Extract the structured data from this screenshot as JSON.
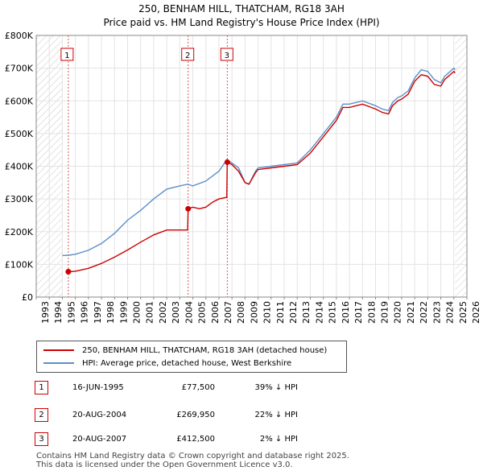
{
  "title_line1": "250, BENHAM HILL, THATCHAM, RG18 3AH",
  "title_line2": "Price paid vs. HM Land Registry's House Price Index (HPI)",
  "legend": {
    "property_label": "250, BENHAM HILL, THATCHAM, RG18 3AH (detached house)",
    "hpi_label": "HPI: Average price, detached house, West Berkshire"
  },
  "colors": {
    "property": "#cc0000",
    "hpi": "#5b8fc9",
    "shade": "#dfe8f5"
  },
  "sales": [
    {
      "num": "1",
      "date": "16-JUN-1995",
      "price": "£77,500",
      "hpi_diff": "39% ↓ HPI"
    },
    {
      "num": "2",
      "date": "20-AUG-2004",
      "price": "£269,950",
      "hpi_diff": "22% ↓ HPI"
    },
    {
      "num": "3",
      "date": "20-AUG-2007",
      "price": "£412,500",
      "hpi_diff": "2% ↓ HPI"
    }
  ],
  "footer_line1": "Contains HM Land Registry data © Crown copyright and database right 2025.",
  "footer_line2": "This data is licensed under the Open Government Licence v3.0.",
  "chart_data": {
    "type": "line",
    "xlim": [
      1993,
      2026
    ],
    "ylim": [
      0,
      800000
    ],
    "x_ticks": [
      1993,
      1994,
      1995,
      1996,
      1997,
      1998,
      1999,
      2000,
      2001,
      2002,
      2003,
      2004,
      2005,
      2006,
      2007,
      2008,
      2009,
      2010,
      2011,
      2012,
      2013,
      2014,
      2015,
      2016,
      2017,
      2018,
      2019,
      2020,
      2021,
      2022,
      2023,
      2024,
      2025,
      2026
    ],
    "y_ticks": [
      {
        "value": 0,
        "label": "£0"
      },
      {
        "value": 100000,
        "label": "£100K"
      },
      {
        "value": 200000,
        "label": "£200K"
      },
      {
        "value": 300000,
        "label": "£300K"
      },
      {
        "value": 400000,
        "label": "£400K"
      },
      {
        "value": 500000,
        "label": "£500K"
      },
      {
        "value": 600000,
        "label": "£600K"
      },
      {
        "value": 700000,
        "label": "£700K"
      },
      {
        "value": 800000,
        "label": "£800K"
      }
    ],
    "hatched_ranges": [
      [
        1993,
        1995.0
      ],
      [
        2025.1,
        2026
      ]
    ],
    "sale_markers": [
      {
        "label": "1",
        "x": 1995.46,
        "y": 77500
      },
      {
        "label": "2",
        "x": 2004.64,
        "y": 269950
      },
      {
        "label": "3",
        "x": 2007.64,
        "y": 412500
      }
    ],
    "series": [
      {
        "name": "250, BENHAM HILL, THATCHAM, RG18 3AH (detached house)",
        "x": [
          1995.46,
          1996,
          1997,
          1998,
          1999,
          2000,
          2001,
          2002,
          2003,
          2004,
          2004.6,
          2004.64,
          2005,
          2005.5,
          2006,
          2006.5,
          2007,
          2007.6,
          2007.64,
          2008,
          2008.5,
          2009,
          2009.3,
          2009.8,
          2010,
          2011,
          2012,
          2013,
          2014,
          2015,
          2016,
          2016.5,
          2017,
          2018,
          2019,
          2019.5,
          2020,
          2020.3,
          2020.7,
          2021,
          2021.5,
          2022,
          2022.5,
          2023,
          2023.5,
          2024,
          2024.3,
          2025,
          2025.1
        ],
        "y": [
          77500,
          79000,
          88000,
          103000,
          122000,
          144000,
          168000,
          190000,
          205000,
          205000,
          205000,
          269950,
          275000,
          270000,
          275000,
          290000,
          300000,
          305000,
          412500,
          405000,
          385000,
          350000,
          345000,
          380000,
          390000,
          395000,
          400000,
          405000,
          440000,
          490000,
          540000,
          580000,
          580000,
          590000,
          575000,
          565000,
          560000,
          585000,
          600000,
          605000,
          620000,
          660000,
          680000,
          675000,
          650000,
          645000,
          665000,
          690000,
          685000
        ]
      },
      {
        "name": "HPI: Average price, detached house, West Berkshire",
        "x": [
          1995.0,
          1995.5,
          1996,
          1997,
          1998,
          1999,
          2000,
          2001,
          2002,
          2003,
          2004,
          2004.6,
          2005,
          2006,
          2007,
          2007.6,
          2008,
          2008.5,
          2009,
          2009.3,
          2009.8,
          2010,
          2011,
          2012,
          2013,
          2014,
          2015,
          2016,
          2016.5,
          2017,
          2018,
          2019,
          2019.5,
          2020,
          2020.3,
          2020.7,
          2021,
          2021.5,
          2022,
          2022.5,
          2023,
          2023.5,
          2024,
          2024.3,
          2025,
          2025.1
        ],
        "y": [
          127000,
          128000,
          131000,
          143000,
          164000,
          195000,
          235000,
          265000,
          300000,
          330000,
          340000,
          345000,
          340000,
          355000,
          385000,
          420000,
          410000,
          395000,
          350000,
          345000,
          385000,
          395000,
          400000,
          405000,
          410000,
          450000,
          500000,
          550000,
          590000,
          590000,
          600000,
          585000,
          575000,
          570000,
          595000,
          610000,
          615000,
          630000,
          670000,
          695000,
          690000,
          665000,
          655000,
          675000,
          700000,
          695000
        ]
      }
    ]
  }
}
